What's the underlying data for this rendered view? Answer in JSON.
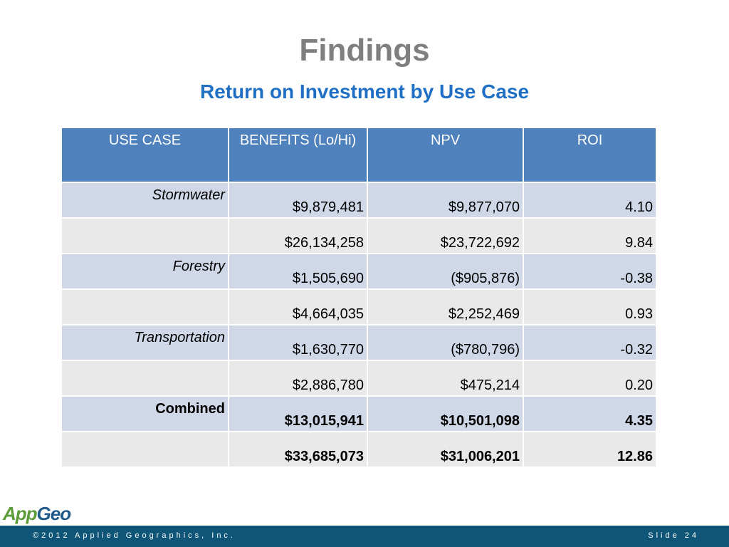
{
  "header": {
    "title": "Findings",
    "subtitle": "Return on Investment by Use Case"
  },
  "table": {
    "columns": [
      "USE CASE",
      "BENEFITS (Lo/Hi)",
      "NPV",
      "ROI"
    ],
    "rows": [
      {
        "use_case": "Stormwater",
        "cells": [
          "$9,879,481",
          "$9,877,070",
          "4.10"
        ]
      },
      {
        "cells": [
          "$26,134,258",
          "$23,722,692",
          "9.84"
        ]
      },
      {
        "use_case": "Forestry",
        "cells": [
          "$1,505,690",
          "($905,876)",
          "-0.38"
        ]
      },
      {
        "cells": [
          "$4,664,035",
          "$2,252,469",
          "0.93"
        ]
      },
      {
        "use_case": "Transportation",
        "cells": [
          "$1,630,770",
          "($780,796)",
          "-0.32"
        ]
      },
      {
        "cells": [
          "$2,886,780",
          "$475,214",
          "0.20"
        ]
      },
      {
        "use_case": "Combined",
        "cells": [
          "$13,015,941",
          "$10,501,098",
          "4.35"
        ]
      },
      {
        "cells": [
          "$33,685,073",
          "$31,006,201",
          "12.86"
        ]
      }
    ]
  },
  "logo": [
    "App",
    "Geo"
  ],
  "footer": {
    "copyright": "©2012 Applied Geographics, Inc.",
    "slide": "Slide 24"
  }
}
